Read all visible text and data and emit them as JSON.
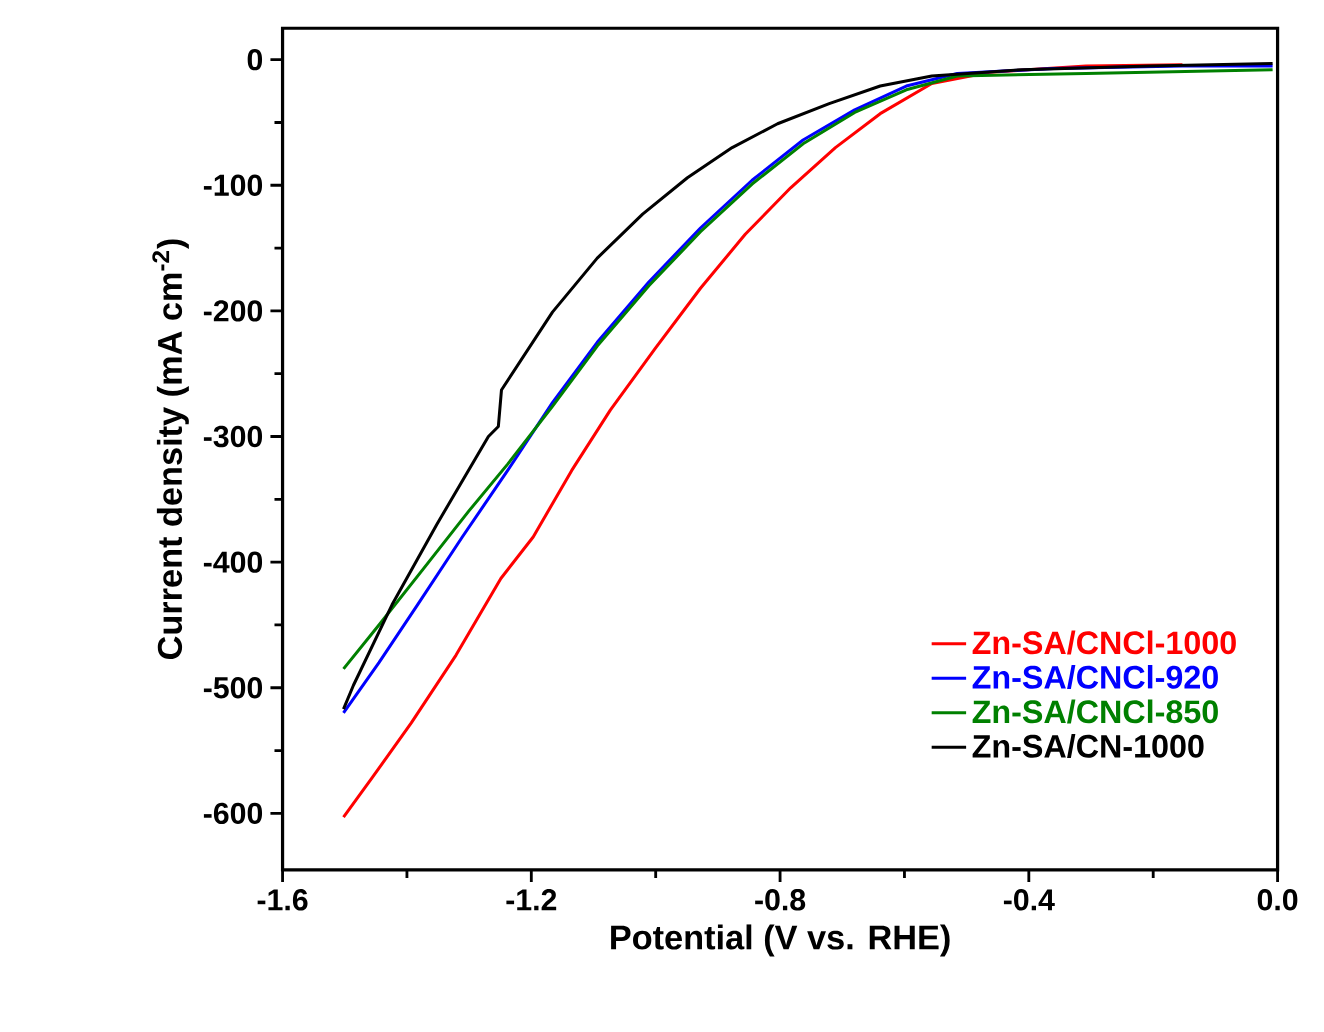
{
  "chart_data": {
    "type": "line",
    "xlabel": "Potential (V vs. RHE)",
    "ylabel": "Current density (mA cm$^{-2}$)",
    "xlim": [
      -1.6,
      0.0
    ],
    "xticks": [
      -1.6,
      -1.2,
      -0.8,
      -0.4,
      {
        "value": 0.0,
        "label": "0.0"
      }
    ],
    "ylim": [
      -645,
      25
    ],
    "yticks": [
      -600,
      -500,
      -400,
      -300,
      -200,
      -100,
      0
    ],
    "legend": "bottom right",
    "grid": false,
    "marker": "none",
    "line_style": "solid",
    "series": [
      {
        "name": "Zn-SA/CNCl-1000",
        "color": "#ff0000",
        "x": [
          -1.502,
          -1.455,
          -1.393,
          -1.321,
          -1.249,
          -1.197,
          -1.135,
          -1.073,
          -1.001,
          -0.928,
          -0.856,
          -0.783,
          -0.711,
          -0.639,
          -0.556,
          -0.463,
          -0.308,
          -0.153
        ],
        "values": [
          -603,
          -571,
          -528,
          -474,
          -413,
          -380,
          -327,
          -279,
          -230,
          -182,
          -139,
          -102,
          -70,
          -43,
          -19,
          -10,
          -5,
          -4
        ]
      },
      {
        "name": "Zn-SA/CNCl-920",
        "color": "#0000ff",
        "x": [
          -1.502,
          -1.445,
          -1.383,
          -1.311,
          -1.238,
          -1.166,
          -1.094,
          -1.011,
          -0.928,
          -0.845,
          -0.763,
          -0.68,
          -0.597,
          -0.515,
          -0.36,
          -0.153,
          -0.008
        ],
        "values": [
          -520,
          -480,
          -434,
          -380,
          -327,
          -273,
          -225,
          -177,
          -134,
          -96,
          -64,
          -40,
          -21,
          -11,
          -7,
          -5,
          -5
        ]
      },
      {
        "name": "Zn-SA/CNCl-850",
        "color": "#008000",
        "x": [
          -1.502,
          -1.445,
          -1.373,
          -1.3,
          -1.238,
          -1.166,
          -1.094,
          -1.011,
          -0.928,
          -0.845,
          -0.763,
          -0.68,
          -0.597,
          -0.515,
          -0.308,
          -0.008
        ],
        "values": [
          -485,
          -450,
          -405,
          -359,
          -322,
          -276,
          -228,
          -180,
          -137,
          -99,
          -67,
          -42,
          -24,
          -13,
          -11,
          -8
        ]
      },
      {
        "name": "Zn-SA/CN-1000",
        "color": "#000000",
        "x": [
          -1.502,
          -1.486,
          -1.424,
          -1.352,
          -1.269,
          -1.253,
          -1.248,
          -1.166,
          -1.094,
          -1.021,
          -0.949,
          -0.877,
          -0.804,
          -0.721,
          -0.639,
          -0.556,
          -0.411,
          -0.205,
          -0.008
        ],
        "values": [
          -517,
          -498,
          -434,
          -370,
          -300,
          -292,
          -263,
          -201,
          -158,
          -123,
          -94,
          -70,
          -51,
          -35,
          -21,
          -13,
          -8,
          -5,
          -3
        ]
      }
    ]
  }
}
